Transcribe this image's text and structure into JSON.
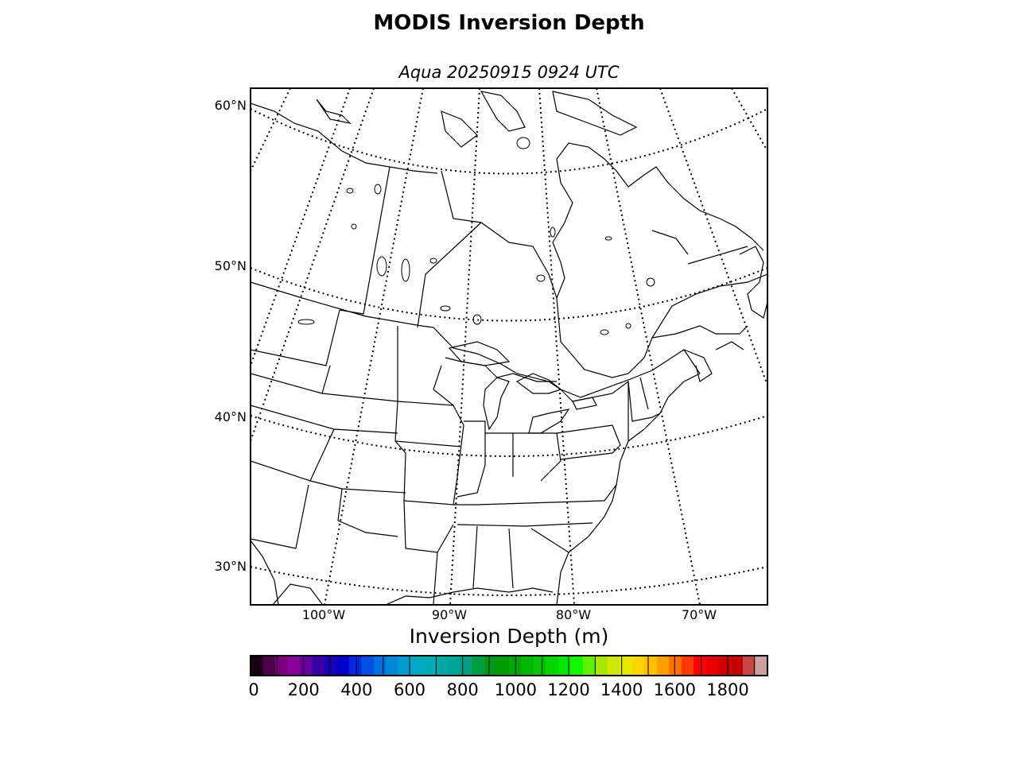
{
  "title": "MODIS Inversion Depth",
  "subtitle": "Aqua 20250915 0924 UTC",
  "map": {
    "lat_labels": [
      "60°N",
      "50°N",
      "40°N",
      "30°N"
    ],
    "lon_labels": [
      "100°W",
      "90°W",
      "80°W",
      "70°W"
    ]
  },
  "colorbar": {
    "label": "Inversion Depth (m)",
    "ticks": [
      "0",
      "200",
      "400",
      "600",
      "800",
      "1000",
      "1200",
      "1400",
      "1600",
      "1800"
    ],
    "min": 0,
    "max": 1950,
    "step": 50,
    "colors": [
      "#1a0015",
      "#50004a",
      "#7a0080",
      "#8a0099",
      "#6a00a0",
      "#3a00a8",
      "#1a00b8",
      "#0000cc",
      "#0028e0",
      "#0050e8",
      "#0070e0",
      "#0088d8",
      "#009cd0",
      "#00a8c4",
      "#00acb8",
      "#00a8a8",
      "#00a498",
      "#00a080",
      "#009c40",
      "#009818",
      "#009c00",
      "#00a800",
      "#00b800",
      "#00c800",
      "#00d800",
      "#00e800",
      "#10f800",
      "#60f000",
      "#a8e800",
      "#d0e800",
      "#e8e800",
      "#ffd400",
      "#ffc000",
      "#ffa000",
      "#ff7000",
      "#ff3800",
      "#ff0000",
      "#e80000",
      "#d00000",
      "#c80000",
      "#c84848",
      "#d0a0a0"
    ]
  }
}
